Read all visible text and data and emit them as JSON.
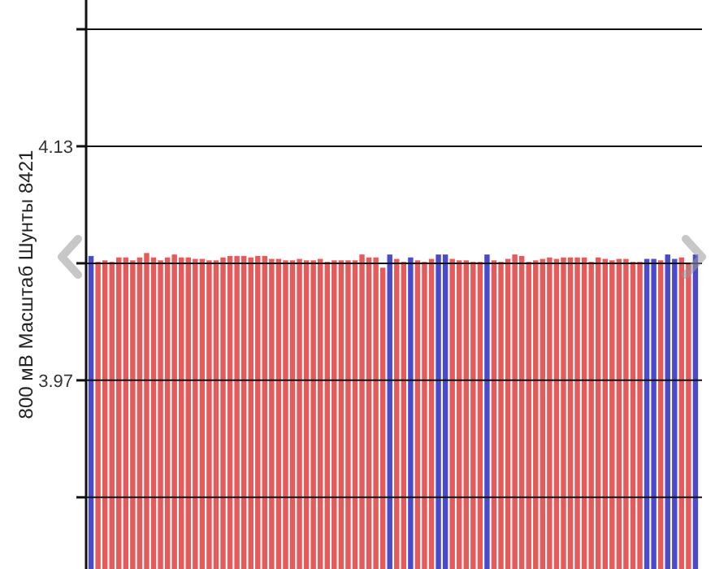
{
  "chart_data": {
    "type": "bar",
    "ylabel": "800 мВ Масштаб   Шунты 8421",
    "categories": [
      null,
      null,
      null,
      null,
      null,
      null,
      null,
      null,
      null,
      null,
      null,
      null,
      null,
      null,
      null,
      null,
      null,
      null,
      null,
      null,
      null,
      null,
      null,
      null,
      null,
      null,
      null,
      null,
      null,
      null,
      null,
      null,
      null,
      null,
      null,
      null,
      null,
      null,
      null,
      null,
      null,
      null,
      null,
      null,
      null,
      null,
      null,
      null,
      null,
      null,
      null,
      null,
      null,
      null,
      null,
      null,
      null,
      null,
      null,
      null,
      null,
      null,
      null,
      null,
      null,
      null,
      null,
      null,
      null,
      null,
      null,
      null,
      null,
      null,
      null,
      null,
      null,
      null,
      null,
      null,
      null,
      null,
      null,
      null,
      null,
      null,
      null,
      null
    ],
    "values": [
      4.055,
      4.051,
      4.052,
      4.051,
      4.054,
      4.054,
      4.052,
      4.054,
      4.057,
      4.054,
      4.052,
      4.054,
      4.056,
      4.054,
      4.054,
      4.053,
      4.053,
      4.052,
      4.052,
      4.054,
      4.055,
      4.055,
      4.055,
      4.054,
      4.055,
      4.055,
      4.053,
      4.053,
      4.052,
      4.052,
      4.053,
      4.052,
      4.052,
      4.053,
      4.051,
      4.052,
      4.052,
      4.052,
      4.052,
      4.056,
      4.054,
      4.054,
      4.047,
      4.056,
      4.053,
      4.051,
      4.054,
      4.052,
      4.051,
      4.053,
      4.056,
      4.056,
      4.053,
      4.052,
      4.052,
      4.051,
      4.051,
      4.056,
      4.052,
      4.051,
      4.053,
      4.056,
      4.055,
      4.051,
      4.052,
      4.053,
      4.054,
      4.053,
      4.054,
      4.054,
      4.054,
      4.054,
      4.051,
      4.054,
      4.053,
      4.052,
      4.053,
      4.053,
      4.051,
      4.051,
      4.053,
      4.053,
      4.052,
      4.056,
      4.053,
      4.054,
      4.05,
      4.056
    ],
    "colors": [
      "#4a4acc",
      "#e55a5a",
      "#e55a5a",
      "#e55a5a",
      "#e55a5a",
      "#e55a5a",
      "#e55a5a",
      "#e55a5a",
      "#e55a5a",
      "#e55a5a",
      "#e55a5a",
      "#e55a5a",
      "#e55a5a",
      "#e55a5a",
      "#e55a5a",
      "#e55a5a",
      "#e55a5a",
      "#e55a5a",
      "#e55a5a",
      "#e55a5a",
      "#e55a5a",
      "#e55a5a",
      "#e55a5a",
      "#e55a5a",
      "#e55a5a",
      "#e55a5a",
      "#e55a5a",
      "#e55a5a",
      "#e55a5a",
      "#e55a5a",
      "#e55a5a",
      "#e55a5a",
      "#e55a5a",
      "#e55a5a",
      "#e55a5a",
      "#e55a5a",
      "#e55a5a",
      "#e55a5a",
      "#e55a5a",
      "#e55a5a",
      "#e55a5a",
      "#e55a5a",
      "#e55a5a",
      "#4a4acc",
      "#e55a5a",
      "#e55a5a",
      "#4a4acc",
      "#e55a5a",
      "#e55a5a",
      "#e55a5a",
      "#4a4acc",
      "#4a4acc",
      "#e55a5a",
      "#e55a5a",
      "#e55a5a",
      "#e55a5a",
      "#e55a5a",
      "#4a4acc",
      "#e55a5a",
      "#e55a5a",
      "#e55a5a",
      "#e55a5a",
      "#e55a5a",
      "#e55a5a",
      "#e55a5a",
      "#e55a5a",
      "#e55a5a",
      "#e55a5a",
      "#e55a5a",
      "#e55a5a",
      "#e55a5a",
      "#e55a5a",
      "#e55a5a",
      "#e55a5a",
      "#e55a5a",
      "#e55a5a",
      "#e55a5a",
      "#e55a5a",
      "#e55a5a",
      "#e55a5a",
      "#4a4acc",
      "#4a4acc",
      "#e55a5a",
      "#4a4acc",
      "#4a4acc",
      "#e55a5a",
      "#e55a5a",
      "#4a4acc"
    ],
    "ylim": [
      3.841,
      4.23
    ],
    "yticks": [
      {
        "value": 3.89,
        "label": null
      },
      3.97,
      {
        "value": 4.05,
        "label": null
      },
      4.13,
      {
        "value": 4.21,
        "label": null
      }
    ],
    "grid": "y",
    "tick_labels": "y"
  }
}
